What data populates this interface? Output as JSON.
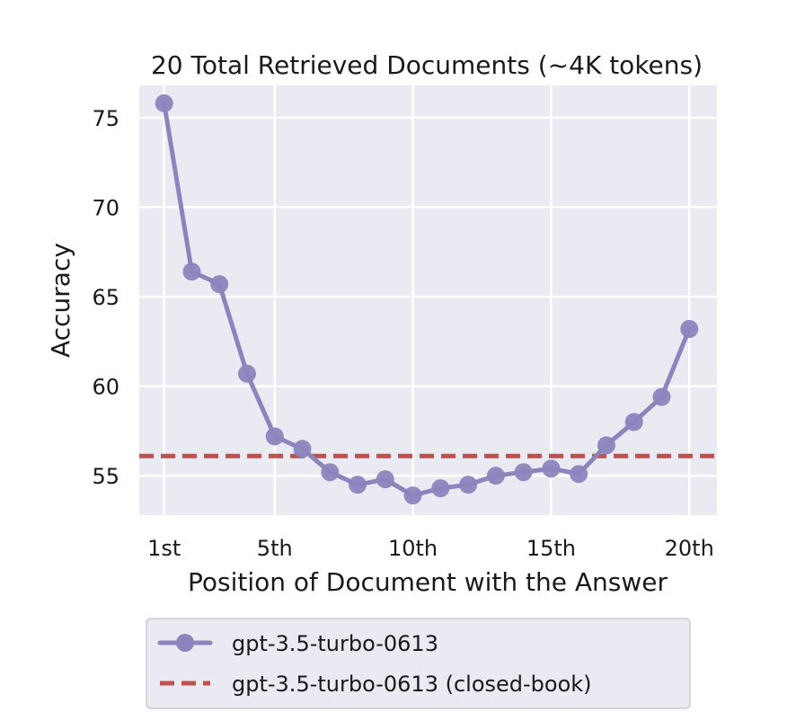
{
  "chart_data": {
    "type": "line",
    "title": "20 Total Retrieved Documents (~4K tokens)",
    "xlabel": "Position of Document with the Answer",
    "ylabel": "Accuracy",
    "x": [
      1,
      2,
      3,
      4,
      5,
      6,
      7,
      8,
      9,
      10,
      11,
      12,
      13,
      14,
      15,
      16,
      17,
      18,
      19,
      20
    ],
    "xticks": [
      1,
      5,
      10,
      15,
      20
    ],
    "xtick_labels": [
      "1st",
      "5th",
      "10th",
      "15th",
      "20th"
    ],
    "yticks": [
      55,
      60,
      65,
      70,
      75
    ],
    "yticks_labels": [
      "55",
      "60",
      "65",
      "70",
      "75"
    ],
    "xlim": [
      0.1,
      21.0
    ],
    "ylim": [
      52.8,
      76.8
    ],
    "grid": true,
    "legend_position": "below",
    "series": [
      {
        "name": "gpt-3.5-turbo-0613",
        "style": "solid-markers",
        "color": "#8c84bd",
        "values": [
          75.8,
          66.4,
          65.7,
          60.7,
          57.2,
          56.5,
          55.2,
          54.5,
          54.8,
          53.9,
          54.3,
          54.5,
          55.0,
          55.2,
          55.4,
          55.1,
          56.7,
          58.0,
          59.4,
          63.2
        ]
      },
      {
        "name": "gpt-3.5-turbo-0613 (closed-book)",
        "style": "dashed",
        "color": "#c0504d",
        "value": 56.1
      }
    ]
  },
  "colors": {
    "plot_background": "#eaeaf2",
    "grid": "#ffffff",
    "legend_background": "#eaeaf2",
    "legend_border": "#cccccc"
  }
}
